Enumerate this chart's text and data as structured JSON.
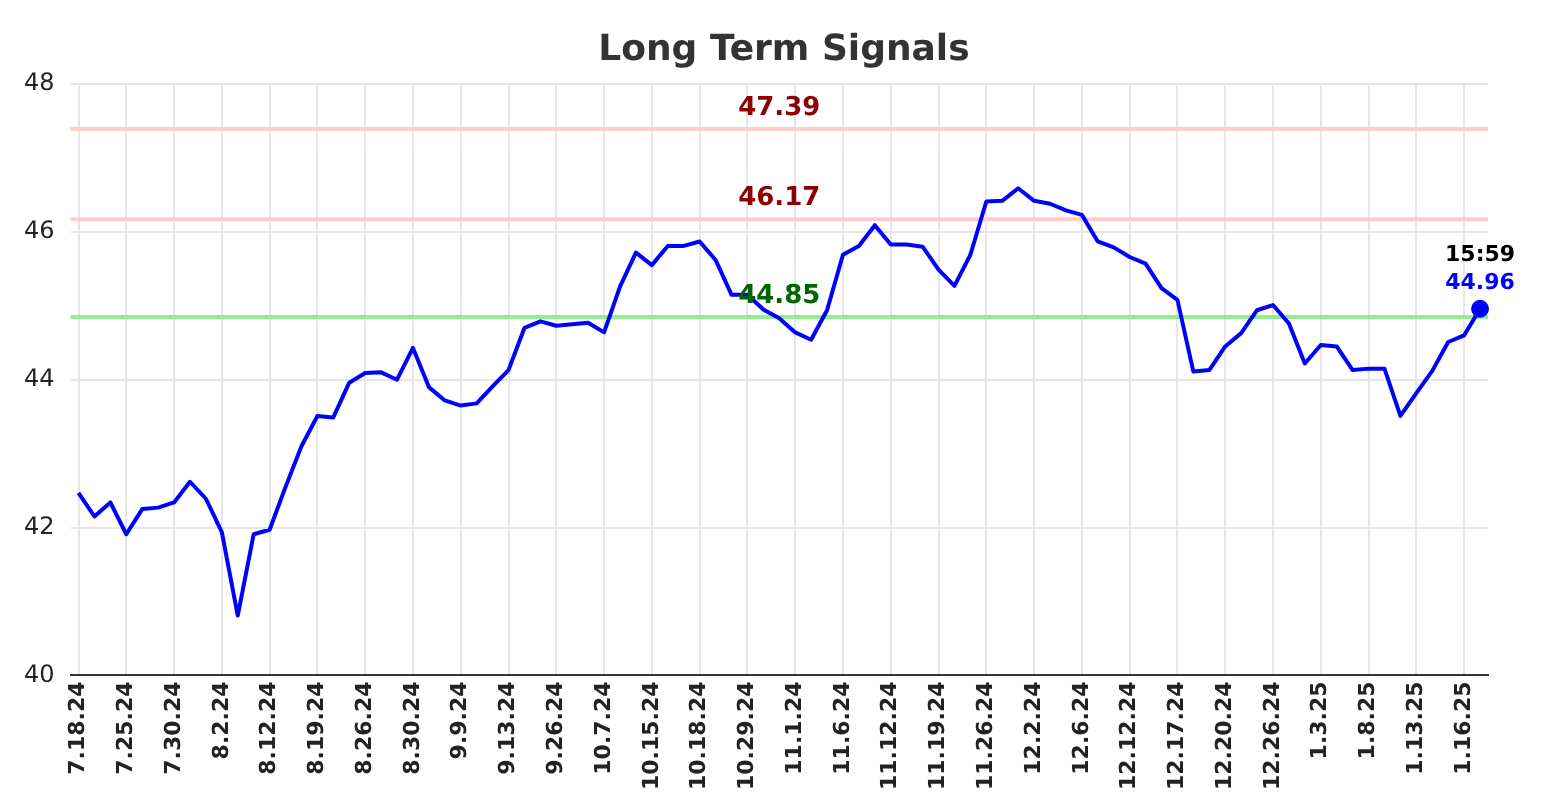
{
  "chart_data": {
    "type": "line",
    "title": "Long Term Signals",
    "categories": [
      "7.18.24",
      null,
      null,
      "7.25.24",
      null,
      null,
      "7.30.24",
      null,
      null,
      "8.2.24",
      null,
      null,
      "8.12.24",
      null,
      null,
      "8.19.24",
      null,
      null,
      "8.26.24",
      null,
      null,
      "8.30.24",
      null,
      null,
      "9.9.24",
      null,
      null,
      "9.13.24",
      null,
      null,
      "9.26.24",
      null,
      null,
      "10.7.24",
      null,
      null,
      "10.15.24",
      null,
      null,
      "10.18.24",
      null,
      null,
      "10.29.24",
      null,
      null,
      "11.1.24",
      null,
      null,
      "11.6.24",
      null,
      null,
      "11.12.24",
      null,
      null,
      "11.19.24",
      null,
      null,
      "11.26.24",
      null,
      null,
      "12.2.24",
      null,
      null,
      "12.6.24",
      null,
      null,
      "12.12.24",
      null,
      null,
      "12.17.24",
      null,
      null,
      "12.20.24",
      null,
      null,
      "12.26.24",
      null,
      null,
      "1.3.25",
      null,
      null,
      "1.8.25",
      null,
      null,
      "1.13.25",
      null,
      null,
      "1.16.25",
      null
    ],
    "series": [
      {
        "color": "#0000ff",
        "marker": "none",
        "values": [
          42.47,
          42.15,
          42.34,
          41.91,
          42.25,
          42.27,
          42.34,
          42.62,
          42.39,
          41.94,
          40.81,
          41.91,
          41.97,
          42.55,
          43.1,
          43.51,
          43.49,
          43.96,
          44.09,
          44.1,
          44.0,
          44.43,
          43.9,
          43.72,
          43.65,
          43.68,
          43.91,
          44.13,
          44.7,
          44.79,
          44.73,
          44.75,
          44.77,
          44.64,
          45.26,
          45.72,
          45.55,
          45.81,
          45.81,
          45.87,
          45.62,
          45.15,
          45.15,
          44.95,
          44.83,
          44.64,
          44.54,
          44.94,
          45.69,
          45.81,
          46.09,
          45.83,
          45.83,
          45.8,
          45.49,
          45.27,
          45.69,
          46.41,
          46.42,
          46.59,
          46.42,
          46.38,
          46.29,
          46.23,
          45.87,
          45.79,
          45.66,
          45.57,
          45.24,
          45.08,
          44.11,
          44.13,
          44.45,
          44.63,
          44.94,
          45.01,
          44.76,
          44.22,
          44.47,
          44.45,
          44.13,
          44.15,
          44.15,
          43.51,
          43.82,
          44.12,
          44.51,
          44.6,
          44.96
        ]
      },
      {
        "type": "scatter",
        "color": "#0000ff",
        "marker": "circle",
        "values": [
          null,
          null,
          null,
          null,
          null,
          null,
          null,
          null,
          null,
          null,
          null,
          null,
          null,
          null,
          null,
          null,
          null,
          null,
          null,
          null,
          null,
          null,
          null,
          null,
          null,
          null,
          null,
          null,
          null,
          null,
          null,
          null,
          null,
          null,
          null,
          null,
          null,
          null,
          null,
          null,
          null,
          null,
          null,
          null,
          null,
          null,
          null,
          null,
          null,
          null,
          null,
          null,
          null,
          null,
          null,
          null,
          null,
          null,
          null,
          null,
          null,
          null,
          null,
          null,
          null,
          null,
          null,
          null,
          null,
          null,
          null,
          null,
          null,
          null,
          null,
          null,
          null,
          null,
          null,
          null,
          null,
          null,
          null,
          null,
          null,
          null,
          null,
          null,
          44.96
        ],
        "value_labels": [
          null,
          null,
          null,
          null,
          null,
          null,
          null,
          null,
          null,
          null,
          null,
          null,
          null,
          null,
          null,
          null,
          null,
          null,
          null,
          null,
          null,
          null,
          null,
          null,
          null,
          null,
          null,
          null,
          null,
          null,
          null,
          null,
          null,
          null,
          null,
          null,
          null,
          null,
          null,
          null,
          null,
          null,
          null,
          null,
          null,
          null,
          null,
          null,
          null,
          null,
          null,
          null,
          null,
          null,
          null,
          null,
          null,
          null,
          null,
          null,
          null,
          null,
          null,
          null,
          null,
          null,
          null,
          null,
          null,
          null,
          null,
          null,
          null,
          null,
          null,
          null,
          null,
          null,
          null,
          null,
          null,
          null,
          null,
          null,
          null,
          null,
          null,
          null,
          "44.96"
        ]
      }
    ],
    "ylim": [
      40,
      48
    ],
    "yticks": [
      40,
      42,
      44,
      46,
      48
    ],
    "grid": true,
    "legend": false,
    "ref_lines": [
      {
        "axis": "y",
        "value": 47.39,
        "label": "47.39",
        "color": "#ffcccc"
      },
      {
        "axis": "y",
        "value": 46.17,
        "label": "46.17",
        "color": "#ffcccc"
      },
      {
        "axis": "y",
        "value": 44.85,
        "label": "44.85",
        "color": "#90ee90"
      }
    ],
    "annotations": [
      {
        "text": "15:59",
        "y": 44.96
      }
    ]
  }
}
